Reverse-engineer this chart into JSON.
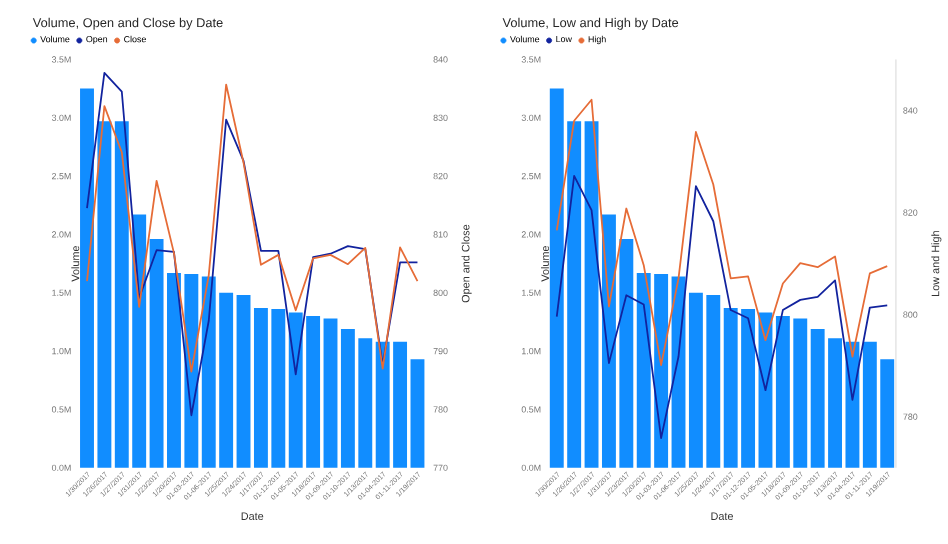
{
  "chart_data": [
    {
      "type": "bar",
      "title": "Volume, Open and Close by Date",
      "xlabel": "Date",
      "ylabel": "Volume",
      "y2label": "Open and Close",
      "legend": "top left",
      "categories": [
        "1/30/2017",
        "1/26/2017",
        "1/27/2017",
        "1/31/2017",
        "1/23/2017",
        "1/20/2017",
        "01-03-2017",
        "01-06-2017",
        "1/25/2017",
        "1/24/2017",
        "1/17/2017",
        "01-12-2017",
        "01-05-2017",
        "1/18/2017",
        "01-09-2017",
        "01-10-2017",
        "1/13/2017",
        "01-04-2017",
        "01-11-2017",
        "1/19/2017"
      ],
      "ylim": [
        0,
        3.5
      ],
      "yticks": [
        {
          "value": 0,
          "label": "0.0M"
        },
        {
          "value": 0.5,
          "label": "0.5M"
        },
        {
          "value": 1,
          "label": "1.0M"
        },
        {
          "value": 1.5,
          "label": "1.5M"
        },
        {
          "value": 2,
          "label": "2.0M"
        },
        {
          "value": 2.5,
          "label": "2.5M"
        },
        {
          "value": 3,
          "label": "3.0M"
        },
        {
          "value": 3.5,
          "label": "3.5M"
        }
      ],
      "y2lim": [
        770,
        840
      ],
      "y2ticks": [
        770,
        780,
        790,
        800,
        810,
        820,
        830,
        840
      ],
      "series": [
        {
          "name": "Volume",
          "type": "bar",
          "color": "#118dff",
          "values": [
            3.25,
            2.97,
            2.97,
            2.17,
            1.96,
            1.67,
            1.66,
            1.64,
            1.5,
            1.48,
            1.37,
            1.36,
            1.33,
            1.3,
            1.28,
            1.19,
            1.11,
            1.08,
            1.08,
            0.93
          ]
        },
        {
          "name": "Open",
          "type": "line",
          "axis": "y2",
          "color": "#12239e",
          "values": [
            814.5,
            837.7,
            834.5,
            799.1,
            807.3,
            807.0,
            779.0,
            795.2,
            829.7,
            822.6,
            807.2,
            807.2,
            786.0,
            806.1,
            806.7,
            808.0,
            807.5,
            787.7,
            805.2,
            805.2
          ]
        },
        {
          "name": "Close",
          "type": "line",
          "axis": "y2",
          "color": "#e66c37",
          "values": [
            802.0,
            832.0,
            824.1,
            797.6,
            819.2,
            806.8,
            786.5,
            803.0,
            835.7,
            822.3,
            804.8,
            806.5,
            797.0,
            805.9,
            806.5,
            804.9,
            807.7,
            787.0,
            807.8,
            802.0
          ]
        }
      ]
    },
    {
      "type": "bar",
      "title": "Volume, Low and High by Date",
      "xlabel": "Date",
      "ylabel": "Volume",
      "y2label": "Low and High",
      "legend": "top left",
      "categories": [
        "1/30/2017",
        "1/26/2017",
        "1/27/2017",
        "1/31/2017",
        "1/23/2017",
        "1/20/2017",
        "01-03-2017",
        "01-06-2017",
        "1/25/2017",
        "1/24/2017",
        "1/17/2017",
        "01-12-2017",
        "01-05-2017",
        "1/18/2017",
        "01-09-2017",
        "01-10-2017",
        "1/13/2017",
        "01-04-2017",
        "01-11-2017",
        "1/19/2017"
      ],
      "ylim": [
        0,
        3.5
      ],
      "yticks": [
        {
          "value": 0,
          "label": "0.0M"
        },
        {
          "value": 0.5,
          "label": "0.5M"
        },
        {
          "value": 1,
          "label": "1.0M"
        },
        {
          "value": 1.5,
          "label": "1.5M"
        },
        {
          "value": 2,
          "label": "2.0M"
        },
        {
          "value": 2.5,
          "label": "2.5M"
        },
        {
          "value": 3,
          "label": "3.0M"
        },
        {
          "value": 3.5,
          "label": "3.5M"
        }
      ],
      "y2lim": [
        770,
        850
      ],
      "y2ticks": [
        780,
        800,
        820,
        840
      ],
      "series": [
        {
          "name": "Volume",
          "type": "bar",
          "color": "#118dff",
          "values": [
            3.25,
            2.97,
            2.97,
            2.17,
            1.96,
            1.67,
            1.66,
            1.64,
            1.5,
            1.48,
            1.37,
            1.36,
            1.33,
            1.3,
            1.28,
            1.19,
            1.11,
            1.08,
            1.08,
            0.93
          ]
        },
        {
          "name": "Low",
          "type": "line",
          "axis": "y2",
          "color": "#12239e",
          "values": [
            799.6,
            827.2,
            820.5,
            790.5,
            803.8,
            802.0,
            775.8,
            791.8,
            825.2,
            818.3,
            800.9,
            799.3,
            785.2,
            800.9,
            802.9,
            803.5,
            806.7,
            783.3,
            801.4,
            801.8
          ]
        },
        {
          "name": "High",
          "type": "line",
          "axis": "y2",
          "color": "#e66c37",
          "values": [
            816.5,
            838.0,
            842.1,
            801.6,
            820.8,
            809.7,
            790.1,
            807.1,
            835.8,
            825.5,
            807.1,
            807.5,
            795.0,
            806.1,
            810.1,
            809.3,
            811.4,
            791.8,
            808.1,
            809.5
          ]
        }
      ]
    }
  ]
}
